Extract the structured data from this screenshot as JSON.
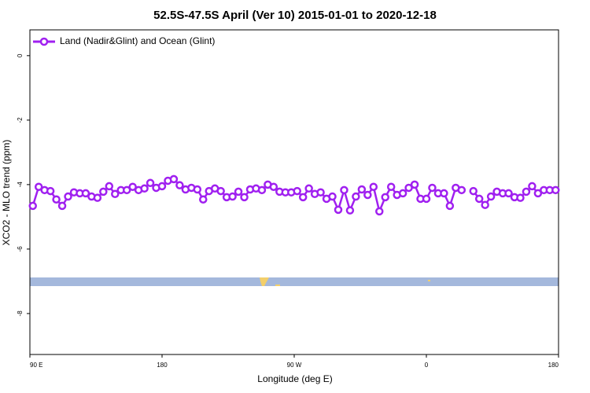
{
  "chart_data": {
    "type": "line",
    "title": "52.5S-47.5S April (Ver 10)   2015-01-01 to 2020-12-18",
    "x_label": "Longitude (deg E)",
    "y_label": "XCO2 - MLO trend (ppm)",
    "xlim": [
      90,
      450
    ],
    "xticks": [
      {
        "value": 90,
        "label": "90 E"
      },
      {
        "value": 180,
        "label": "180"
      },
      {
        "value": 270,
        "label": "90 W"
      },
      {
        "value": 360,
        "label": "0"
      },
      {
        "value": 450,
        "label": "180"
      }
    ],
    "extra_xticks": [
      {
        "value": 450,
        "label": "180"
      }
    ],
    "ylim": [
      -9.27,
      0.8
    ],
    "yticks": [
      0,
      -2,
      -4,
      -6,
      -8
    ],
    "legend": "top-left",
    "x": [
      92,
      96,
      100,
      104,
      108,
      112,
      116,
      120,
      124,
      128,
      132,
      136,
      140,
      144,
      148,
      152,
      156,
      160,
      164,
      168,
      172,
      176,
      180,
      184,
      188,
      192,
      196,
      200,
      204,
      208,
      212,
      216,
      220,
      224,
      228,
      232,
      236,
      240,
      244,
      248,
      252,
      256,
      260,
      264,
      268,
      272,
      276,
      280,
      284,
      288,
      292,
      296,
      300,
      304,
      308,
      312,
      316,
      320,
      324,
      328,
      332,
      336,
      340,
      344,
      348,
      352,
      356,
      360,
      364,
      368,
      372,
      376,
      380,
      384,
      388,
      392,
      396,
      400,
      404,
      408,
      412,
      416,
      420,
      424,
      428,
      432,
      436,
      440,
      444,
      448
    ],
    "series": [
      {
        "name": "Land (Nadir&Glint) and Ocean (Glint)",
        "color": "#a020f0",
        "values": [
          -4.66,
          -4.07,
          -4.17,
          -4.2,
          -4.46,
          -4.66,
          -4.37,
          -4.24,
          -4.27,
          -4.27,
          -4.37,
          -4.41,
          -4.22,
          -4.05,
          -4.29,
          -4.17,
          -4.17,
          -4.07,
          -4.17,
          -4.12,
          -3.95,
          -4.1,
          -4.05,
          -3.88,
          -3.83,
          -4.02,
          -4.15,
          -4.1,
          -4.15,
          -4.46,
          -4.2,
          -4.12,
          -4.2,
          -4.39,
          -4.37,
          -4.22,
          -4.39,
          -4.15,
          -4.12,
          -4.17,
          -4.0,
          -4.07,
          -4.22,
          -4.24,
          -4.24,
          -4.2,
          -4.39,
          -4.12,
          -4.29,
          -4.24,
          -4.44,
          -4.37,
          -4.78,
          -4.17,
          -4.8,
          -4.37,
          -4.15,
          -4.32,
          -4.07,
          -4.83,
          -4.39,
          -4.07,
          -4.32,
          -4.27,
          -4.1,
          -4.0,
          -4.44,
          -4.44,
          -4.1,
          -4.27,
          -4.27,
          -4.66,
          -4.1,
          -4.17,
          null,
          -4.2,
          -4.44,
          -4.63,
          -4.37,
          -4.22,
          -4.27,
          -4.27,
          -4.39,
          -4.41,
          -4.22,
          -4.05,
          -4.27,
          -4.17,
          -4.17,
          -4.17
        ]
      }
    ]
  }
}
